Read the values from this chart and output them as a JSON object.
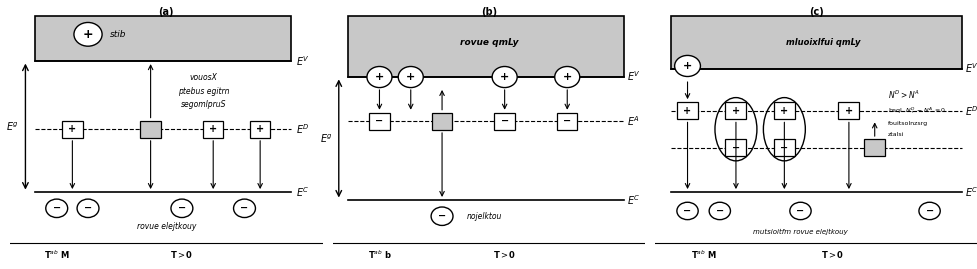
{
  "bg_color": "#ffffff",
  "gray": "#c8c8c8",
  "black": "#000000",
  "panels": [
    "(a)",
    "(b)",
    "(c)"
  ]
}
